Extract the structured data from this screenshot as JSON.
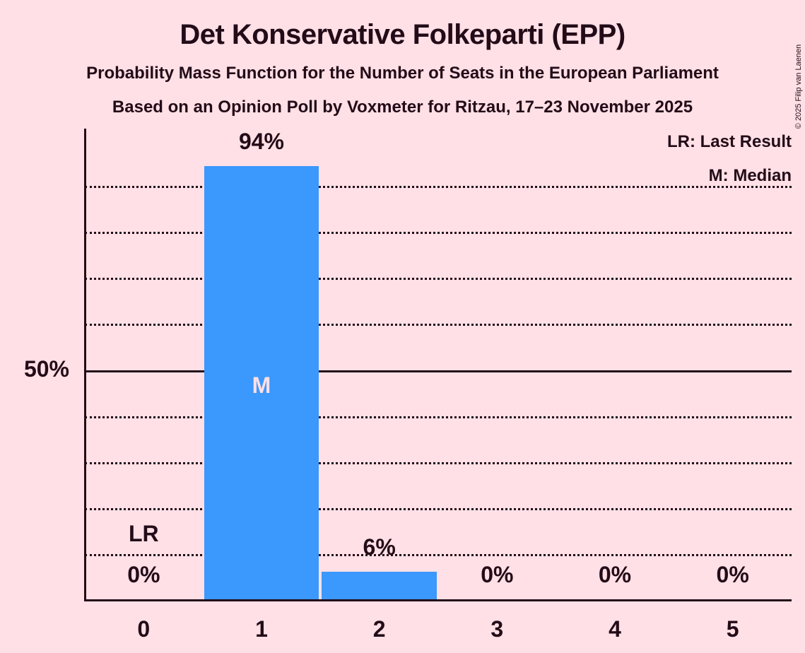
{
  "page": {
    "background_color": "#ffe0e6",
    "text_color": "#230c18"
  },
  "header": {
    "title": "Det Konservative Folkeparti (EPP)",
    "subtitle": "Probability Mass Function for the Number of Seats in the European Parliament",
    "source_line": "Based on an Opinion Poll by Voxmeter for Ritzau, 17–23 November 2025"
  },
  "legend": {
    "last_result": "LR: Last Result",
    "median": "M: Median"
  },
  "copyright": "© 2025 Filip van Laenen",
  "chart_data": {
    "type": "bar",
    "title": "Det Konservative Folkeparti (EPP)",
    "subtitle": "Probability Mass Function for the Number of Seats in the European Parliament",
    "source": "Based on an Opinion Poll by Voxmeter for Ritzau, 17–23 November 2025",
    "categories": [
      "0",
      "1",
      "2",
      "3",
      "4",
      "5"
    ],
    "values": [
      0,
      94,
      6,
      0,
      0,
      0
    ],
    "bar_labels": [
      "0%",
      "94%",
      "6%",
      "0%",
      "0%",
      "0%"
    ],
    "y_axis_label": "50%",
    "ylim": [
      0,
      100
    ],
    "gridlines_pct": [
      10,
      20,
      30,
      40,
      60,
      70,
      80,
      90
    ],
    "solid_gridline_pct": 50,
    "grid_style": "dotted",
    "legend_position": "top-right",
    "annotations": {
      "last_result_category": "0",
      "last_result_text": "LR",
      "median_category": "1",
      "median_text": "M"
    },
    "bar_color": "#3b98fc",
    "inside_label_color": "#ffe0e6"
  }
}
